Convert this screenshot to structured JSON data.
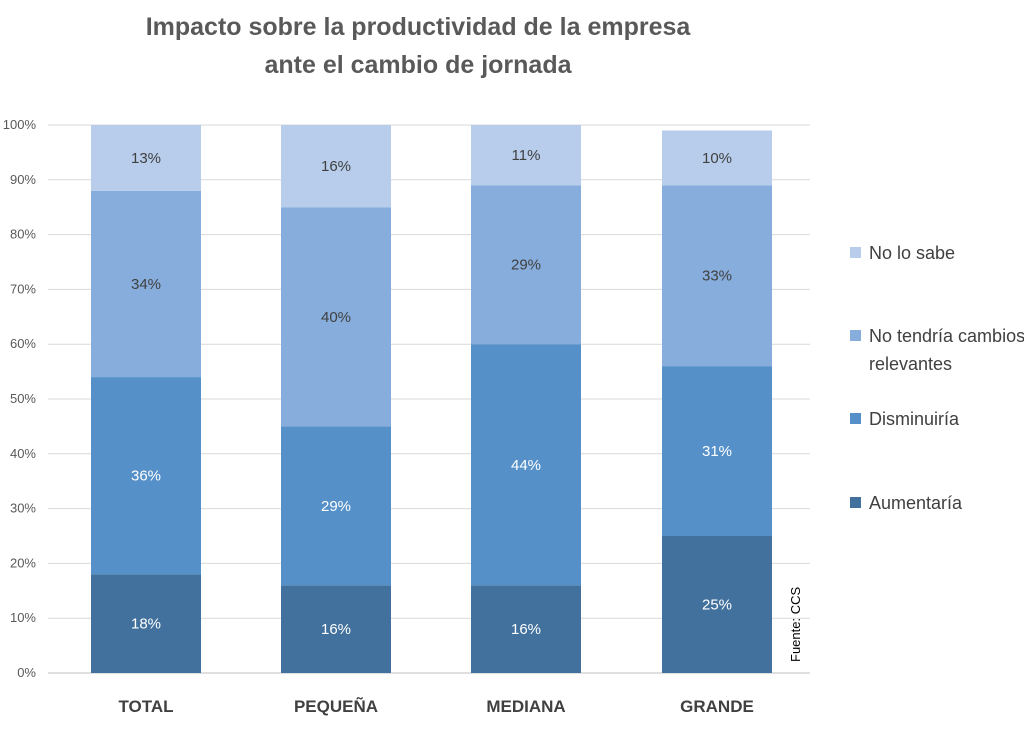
{
  "chart_data": {
    "type": "bar",
    "stacked": true,
    "title": [
      "Impacto sobre la productividad de la empresa",
      "ante el cambio de jornada"
    ],
    "categories": [
      "TOTAL",
      "PEQUEÑA",
      "MEDIANA",
      "GRANDE"
    ],
    "series": [
      {
        "name": "Aumentaría",
        "values": [
          18,
          16,
          16,
          25
        ],
        "labels": [
          "18%",
          "16%",
          "16%",
          "25%"
        ],
        "color": "#41719C",
        "label_color": "#ffffff"
      },
      {
        "name": "Disminuiría",
        "values": [
          36,
          29,
          44,
          31
        ],
        "labels": [
          "36%",
          "29%",
          "44%",
          "31%"
        ],
        "color": "#5590C8",
        "label_color": "#ffffff"
      },
      {
        "name": "No tendría cambios relevantes",
        "legend_lines": [
          "No tendría cambios",
          "relevantes"
        ],
        "values": [
          34,
          40,
          29,
          33
        ],
        "labels": [
          "34%",
          "40%",
          "29%",
          "33%"
        ],
        "color": "#86ADDC",
        "label_color": "#404040"
      },
      {
        "name": "No lo sabe",
        "values": [
          13,
          16,
          11,
          10
        ],
        "labels": [
          "13%",
          "16%",
          "11%",
          "10%"
        ],
        "color": "#B7CDEB",
        "label_color": "#404040"
      }
    ],
    "y_ticks": [
      "0%",
      "10%",
      "20%",
      "30%",
      "40%",
      "50%",
      "60%",
      "70%",
      "80%",
      "90%",
      "100%"
    ],
    "ylim": [
      0,
      100
    ],
    "grid": true,
    "legend_position": "right",
    "source": "Fuente: CCS"
  }
}
